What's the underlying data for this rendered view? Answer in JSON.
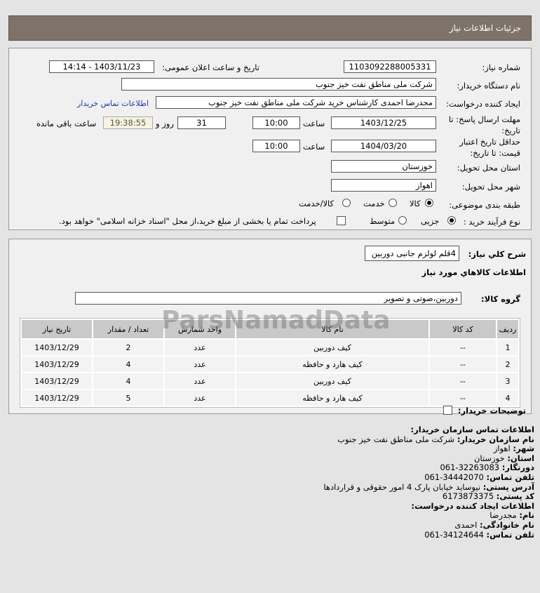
{
  "page_title": "جزئیات اطلاعات نیاز",
  "form": {
    "need_number_label": "شماره نیاز:",
    "need_number": "1103092288005331",
    "announce_label": "تاریخ و ساعت اعلان عمومی:",
    "announce_value": "1403/11/23 - 14:14",
    "buyer_label": "نام دستگاه خریدار:",
    "buyer_value": "شرکت ملی مناطق نفت خیز جنوب",
    "creator_label": "ایجاد کننده درخواست:",
    "creator_value": "مجدرضا احمدی  کارشناس خرید  شرکت ملی مناطق نفت خیز جنوب",
    "contact_link": "اطلاعات تماس خریدار",
    "deadline_label_1": "مهلت ارسال پاسخ: تا",
    "deadline_label_2": "تاریخ:",
    "deadline_date": "1403/12/25",
    "time_label": "ساعت",
    "deadline_time": "10:00",
    "days": "31",
    "days_label": "روز و",
    "remaining": "19:38:55",
    "remaining_label": "ساعت باقی مانده",
    "validity_label_1": "حداقل تاریخ اعتبار",
    "validity_label_2": "قیمت: تا تاریخ:",
    "validity_date": "1404/03/20",
    "validity_time": "10:00",
    "province_label": "استان محل تحویل:",
    "province": "خوزستان",
    "city_label": "شهر محل تحویل:",
    "city": "اهواز",
    "category_label": "طبقه بندی موضوعی:",
    "category_options": [
      "کالا",
      "خدمت",
      "کالا/خدمت"
    ],
    "category_selected": 0,
    "process_label": "نوع فرآیند خرید :",
    "process_options": [
      "جزیی",
      "متوسط"
    ],
    "process_selected": 0,
    "payment_note": "پرداخت تمام یا بخشی از مبلغ خرید،از محل \"اسناد خزانه اسلامی\" خواهد بود."
  },
  "goods": {
    "summary_label": "شرح کلي نياز:",
    "summary": "4قلم لولزم جانبی دوربین",
    "section_title": "اطلاعات کالاهاي مورد نياز",
    "group_label": "گروه کالا:",
    "group": "دوربین،صوتی و تصویر",
    "columns": [
      "ردیف",
      "کد کالا",
      "نام کالا",
      "واحد شمارش",
      "تعداد / مقدار",
      "تاریخ نیاز"
    ],
    "rows": [
      [
        "1",
        "--",
        "کیف دوربین",
        "عدد",
        "2",
        "1403/12/29"
      ],
      [
        "2",
        "--",
        "کیف هارد و حافظه",
        "عدد",
        "4",
        "1403/12/29"
      ],
      [
        "3",
        "--",
        "کیف دوربین",
        "عدد",
        "4",
        "1403/12/29"
      ],
      [
        "4",
        "--",
        "کیف هارد و حافظه",
        "عدد",
        "5",
        "1403/12/29"
      ]
    ],
    "buyer_notes_label": "توضیحات خریدار:"
  },
  "contact": {
    "title": "اطلاعات تماس سازمان خریدار:",
    "org_label": "نام سازمان خریدار:",
    "org": "شرکت ملی مناطق نفت خیز جنوب",
    "city_label": "شهر:",
    "city": "اهواز",
    "province_label": "استان:",
    "province": "خوزستان",
    "fax_label": "دورنگار:",
    "fax": "061-32263083",
    "phone_label": "تلفن تماس:",
    "phone": "061-34442070",
    "address_label": "آدرس پستی:",
    "address": "نیوساید خیابان پارک 4 امور حقوقی و قراردادها",
    "postal_label": "کد پستی:",
    "postal": "6173873375",
    "creator_title": "اطلاعات ایجاد کننده درخواست:",
    "name_label": "نام:",
    "name": "مجدرضا",
    "family_label": "نام خانوادگی:",
    "family": "احمدی",
    "creator_phone_label": "تلفن تماس:",
    "creator_phone": "061-34124644"
  },
  "watermark": "ParsNamadData"
}
